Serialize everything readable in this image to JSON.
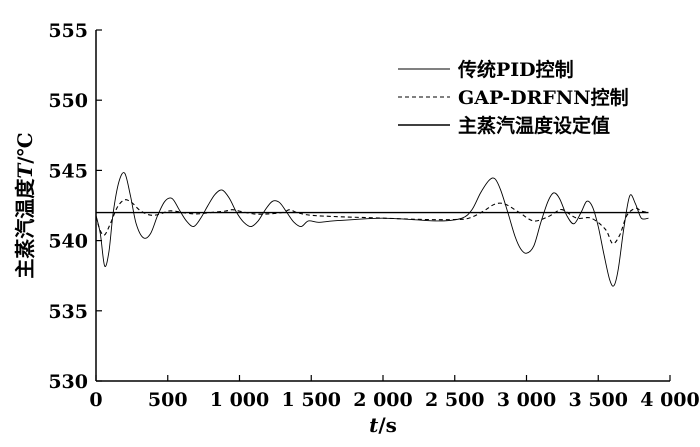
{
  "chart_data": {
    "type": "line",
    "title": "",
    "xlabel_italic": "t",
    "xlabel_unit": "/s",
    "ylabel_prefix": "主蒸汽温度",
    "ylabel_italic": "T",
    "ylabel_unit": "/℃",
    "xlim": [
      0,
      4000
    ],
    "ylim": [
      530,
      555
    ],
    "x_ticks": [
      {
        "value": 0,
        "label": "0"
      },
      {
        "value": 500,
        "label": "500"
      },
      {
        "value": 1000,
        "label": "1 000"
      },
      {
        "value": 1500,
        "label": "1 500"
      },
      {
        "value": 2000,
        "label": "2 000"
      },
      {
        "value": 2500,
        "label": "2 500"
      },
      {
        "value": 3000,
        "label": "3 000"
      },
      {
        "value": 3500,
        "label": "3 500"
      },
      {
        "value": 4000,
        "label": "4 000"
      }
    ],
    "y_ticks": [
      {
        "value": 530,
        "label": "530"
      },
      {
        "value": 535,
        "label": "535"
      },
      {
        "value": 540,
        "label": "540"
      },
      {
        "value": 545,
        "label": "545"
      },
      {
        "value": 550,
        "label": "550"
      },
      {
        "value": 555,
        "label": "555"
      }
    ],
    "grid": false,
    "legend_position": "top-right",
    "series": [
      {
        "name": "传统PID控制",
        "style": "solid-thin",
        "color": "#000000",
        "x": [
          0,
          30,
          60,
          90,
          120,
          160,
          200,
          240,
          280,
          330,
          380,
          430,
          480,
          530,
          580,
          630,
          680,
          730,
          780,
          830,
          880,
          930,
          980,
          1030,
          1080,
          1130,
          1180,
          1230,
          1280,
          1330,
          1380,
          1430,
          1480,
          1550,
          1650,
          1800,
          2000,
          2200,
          2400,
          2550,
          2620,
          2680,
          2740,
          2780,
          2820,
          2870,
          2920,
          2960,
          3000,
          3050,
          3100,
          3150,
          3190,
          3230,
          3280,
          3330,
          3380,
          3420,
          3460,
          3500,
          3540,
          3580,
          3610,
          3640,
          3680,
          3720,
          3760,
          3800,
          3850
        ],
        "y": [
          541.8,
          540.5,
          538.2,
          539.2,
          542.0,
          544.2,
          544.8,
          543.2,
          541.2,
          540.2,
          540.5,
          541.8,
          542.8,
          543.0,
          542.2,
          541.4,
          541.0,
          541.6,
          542.5,
          543.3,
          543.6,
          543.0,
          542.0,
          541.3,
          541.0,
          541.4,
          542.2,
          542.8,
          542.7,
          542.0,
          541.3,
          541.0,
          541.4,
          541.3,
          541.4,
          541.5,
          541.6,
          541.5,
          541.4,
          541.6,
          542.2,
          543.4,
          544.3,
          544.4,
          543.6,
          542.0,
          540.3,
          539.4,
          539.1,
          539.6,
          541.3,
          542.8,
          543.4,
          543.0,
          541.8,
          541.2,
          542.0,
          542.8,
          542.4,
          541.0,
          539.0,
          537.2,
          536.8,
          538.0,
          541.0,
          543.2,
          542.6,
          541.6,
          541.6
        ]
      },
      {
        "name": "GAP-DRFNN控制",
        "style": "dashed",
        "color": "#000000",
        "x": [
          0,
          30,
          60,
          100,
          150,
          200,
          250,
          300,
          350,
          400,
          450,
          500,
          550,
          600,
          700,
          800,
          900,
          950,
          1000,
          1100,
          1200,
          1300,
          1350,
          1400,
          1500,
          1700,
          2000,
          2300,
          2500,
          2600,
          2700,
          2780,
          2850,
          2950,
          3050,
          3150,
          3200,
          3250,
          3350,
          3450,
          3550,
          3600,
          3650,
          3700,
          3760,
          3800,
          3850
        ],
        "y": [
          541.7,
          540.7,
          540.4,
          541.2,
          542.4,
          542.9,
          542.7,
          542.2,
          541.9,
          541.8,
          541.9,
          542.1,
          542.1,
          542.0,
          541.9,
          542.0,
          542.1,
          542.2,
          542.1,
          541.9,
          541.9,
          542.0,
          542.2,
          542.0,
          541.8,
          541.7,
          541.6,
          541.5,
          541.5,
          541.6,
          542.1,
          542.6,
          542.6,
          542.0,
          541.4,
          541.7,
          542.0,
          542.2,
          541.6,
          541.6,
          540.8,
          539.8,
          540.4,
          541.8,
          542.3,
          542.1,
          542.0
        ]
      },
      {
        "name": "主蒸汽温度设定值",
        "style": "solid",
        "color": "#000000",
        "x": [
          0,
          3850
        ],
        "y": [
          542,
          542
        ]
      }
    ]
  }
}
